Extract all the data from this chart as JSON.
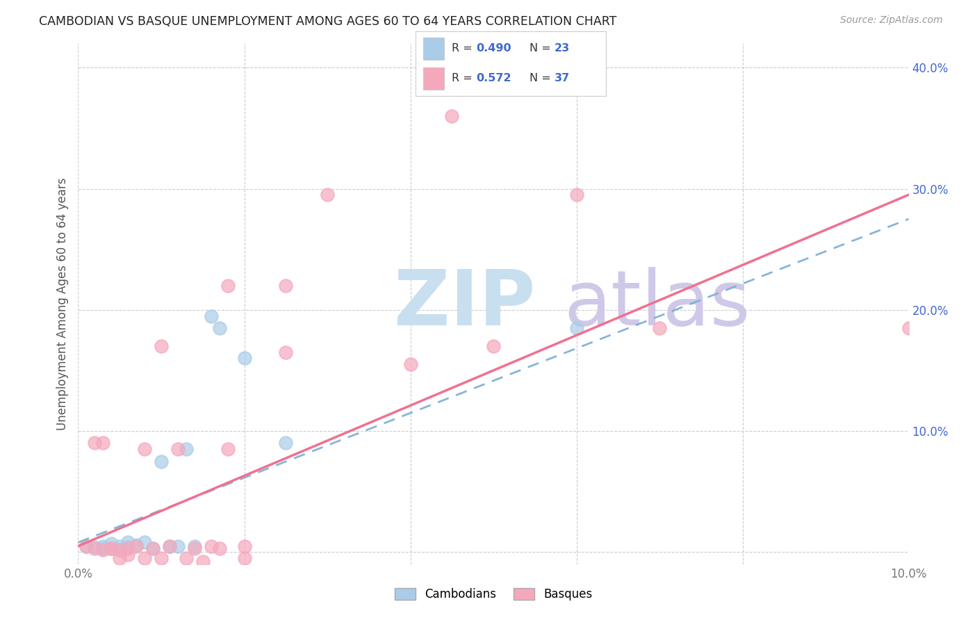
{
  "title": "CAMBODIAN VS BASQUE UNEMPLOYMENT AMONG AGES 60 TO 64 YEARS CORRELATION CHART",
  "source": "Source: ZipAtlas.com",
  "ylabel": "Unemployment Among Ages 60 to 64 years",
  "xlim": [
    0.0,
    0.1
  ],
  "ylim": [
    -0.01,
    0.42
  ],
  "x_tick_positions": [
    0.0,
    0.02,
    0.04,
    0.06,
    0.08,
    0.1
  ],
  "x_tick_labels": [
    "0.0%",
    "",
    "",
    "",
    "",
    "10.0%"
  ],
  "y_ticks_right": [
    0.0,
    0.1,
    0.2,
    0.3,
    0.4
  ],
  "y_tick_labels_right": [
    "",
    "10.0%",
    "20.0%",
    "30.0%",
    "40.0%"
  ],
  "cambodian_color": "#aacce8",
  "basque_color": "#f5a8bc",
  "cambodian_line_color": "#7aadd4",
  "basque_line_color": "#f07090",
  "legend_color": "#4169cd",
  "legend_R_color": "#333333",
  "watermark_zip_color": "#c8dff0",
  "watermark_atlas_color": "#d0c8e8",
  "cambodian_points": [
    [
      0.001,
      0.005
    ],
    [
      0.002,
      0.004
    ],
    [
      0.003,
      0.003
    ],
    [
      0.003,
      0.005
    ],
    [
      0.004,
      0.003
    ],
    [
      0.004,
      0.007
    ],
    [
      0.005,
      0.002
    ],
    [
      0.005,
      0.005
    ],
    [
      0.006,
      0.004
    ],
    [
      0.006,
      0.008
    ],
    [
      0.007,
      0.006
    ],
    [
      0.008,
      0.008
    ],
    [
      0.009,
      0.003
    ],
    [
      0.01,
      0.075
    ],
    [
      0.011,
      0.005
    ],
    [
      0.012,
      0.005
    ],
    [
      0.013,
      0.085
    ],
    [
      0.014,
      0.005
    ],
    [
      0.016,
      0.195
    ],
    [
      0.017,
      0.185
    ],
    [
      0.02,
      0.16
    ],
    [
      0.025,
      0.09
    ],
    [
      0.06,
      0.185
    ]
  ],
  "basque_points": [
    [
      0.001,
      0.005
    ],
    [
      0.002,
      0.003
    ],
    [
      0.002,
      0.09
    ],
    [
      0.003,
      0.002
    ],
    [
      0.003,
      0.09
    ],
    [
      0.004,
      0.003
    ],
    [
      0.004,
      0.003
    ],
    [
      0.005,
      -0.005
    ],
    [
      0.005,
      0.002
    ],
    [
      0.006,
      -0.002
    ],
    [
      0.006,
      0.003
    ],
    [
      0.007,
      0.005
    ],
    [
      0.008,
      -0.005
    ],
    [
      0.008,
      0.085
    ],
    [
      0.009,
      0.003
    ],
    [
      0.01,
      -0.005
    ],
    [
      0.01,
      0.17
    ],
    [
      0.011,
      0.005
    ],
    [
      0.012,
      0.085
    ],
    [
      0.013,
      -0.005
    ],
    [
      0.014,
      0.003
    ],
    [
      0.015,
      -0.008
    ],
    [
      0.016,
      0.005
    ],
    [
      0.017,
      0.003
    ],
    [
      0.018,
      0.085
    ],
    [
      0.018,
      0.22
    ],
    [
      0.02,
      -0.005
    ],
    [
      0.02,
      0.005
    ],
    [
      0.025,
      0.22
    ],
    [
      0.025,
      0.165
    ],
    [
      0.03,
      0.295
    ],
    [
      0.04,
      0.155
    ],
    [
      0.045,
      0.36
    ],
    [
      0.05,
      0.17
    ],
    [
      0.06,
      0.295
    ],
    [
      0.07,
      0.185
    ],
    [
      0.1,
      0.185
    ]
  ]
}
